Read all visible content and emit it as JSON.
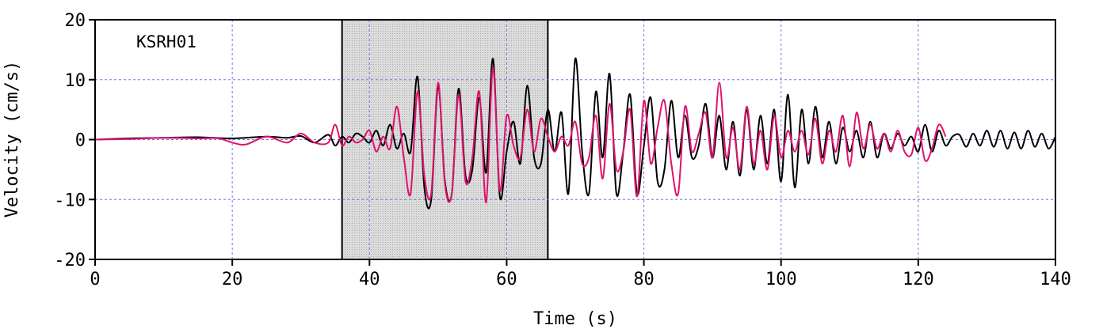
{
  "chart_data": {
    "type": "line",
    "station_label": "KSRH01",
    "xlabel": "Time (s)",
    "ylabel": "Velocity (cm/s)",
    "xlim": [
      0,
      140
    ],
    "ylim": [
      -20,
      20
    ],
    "xticks": [
      0,
      20,
      40,
      60,
      80,
      100,
      120,
      140
    ],
    "yticks": [
      20,
      10,
      0,
      -10,
      -20
    ],
    "grid": true,
    "highlight_window": {
      "x0": 36,
      "x1": 66
    },
    "colors": {
      "series_black": "#000000",
      "series_magenta": "#e0116e",
      "grid": "#7777dd",
      "window_fill": "#dcdcdc"
    },
    "series": [
      {
        "color": "#000000",
        "x": [
          0,
          5,
          10,
          15,
          20,
          25,
          28,
          30,
          32,
          34,
          35,
          36,
          37,
          38,
          39,
          40,
          41,
          42,
          43,
          44,
          45,
          46,
          47,
          48,
          49,
          50,
          51,
          52,
          53,
          54,
          55,
          56,
          57,
          58,
          59,
          60,
          61,
          62,
          63,
          64,
          65,
          66,
          67,
          68,
          69,
          70,
          71,
          72,
          73,
          74,
          75,
          76,
          77,
          78,
          79,
          80,
          81,
          82,
          83,
          84,
          85,
          86,
          87,
          88,
          89,
          90,
          91,
          92,
          93,
          94,
          95,
          96,
          97,
          98,
          99,
          100,
          101,
          102,
          103,
          104,
          105,
          106,
          107,
          108,
          109,
          110,
          111,
          112,
          113,
          114,
          115,
          116,
          117,
          118,
          119,
          120,
          121,
          122,
          123,
          124,
          125,
          126,
          127,
          128,
          129,
          130,
          131,
          132,
          133,
          134,
          135,
          136,
          137,
          138,
          139,
          140
        ],
        "y": [
          0,
          0.2,
          0.3,
          0.4,
          0.2,
          0.5,
          0.3,
          0.6,
          -0.5,
          0.8,
          -1.0,
          0.5,
          -0.5,
          1.0,
          0.5,
          -0.5,
          1.5,
          -1.0,
          2.5,
          -1.5,
          1.0,
          -2.0,
          10.5,
          -8.0,
          -10.0,
          9.0,
          -7.0,
          -9.0,
          8.5,
          -6.0,
          -5.0,
          7.0,
          -5.5,
          13.5,
          -9.5,
          -2.0,
          3.0,
          -4.0,
          9.0,
          -3.0,
          -4.0,
          5.0,
          -2.0,
          4.5,
          -9.0,
          13.5,
          -2.0,
          -9.0,
          8.0,
          -3.0,
          11.0,
          -9.0,
          -2.0,
          7.5,
          -9.0,
          -1.0,
          7.0,
          -7.0,
          -5.0,
          6.5,
          -3.0,
          4.0,
          -3.0,
          -1.0,
          6.0,
          -3.0,
          4.0,
          -5.0,
          3.0,
          -6.0,
          5.0,
          -5.0,
          4.0,
          -4.0,
          5.0,
          -7.0,
          7.5,
          -8.0,
          5.0,
          -4.0,
          5.5,
          -3.0,
          3.0,
          -4.0,
          2.0,
          -2.0,
          1.5,
          -3.0,
          3.0,
          -3.0,
          1.0,
          -1.5,
          1.0,
          -1.0,
          0.5,
          -2.0,
          2.5,
          -2.0,
          1.5,
          -1.0,
          0.5,
          0.8,
          -1.2,
          1.0,
          -1.0,
          1.5,
          -1.2,
          1.5,
          -1.5,
          1.2,
          -1.5,
          1.5,
          -1.2,
          1.0,
          -1.5,
          0.5
        ],
        "line_width": 2
      },
      {
        "color": "#e0116e",
        "x": [
          0,
          5,
          10,
          15,
          18,
          20,
          22,
          25,
          28,
          30,
          32,
          34,
          35,
          36,
          37,
          38,
          39,
          40,
          41,
          42,
          43,
          44,
          45,
          46,
          47,
          48,
          49,
          50,
          51,
          52,
          53,
          54,
          55,
          56,
          57,
          58,
          59,
          60,
          61,
          62,
          63,
          64,
          65,
          66,
          67,
          68,
          69,
          70,
          71,
          72,
          73,
          74,
          75,
          76,
          77,
          78,
          79,
          80,
          81,
          82,
          83,
          84,
          85,
          86,
          87,
          88,
          89,
          90,
          91,
          92,
          93,
          94,
          95,
          96,
          97,
          98,
          99,
          100,
          101,
          102,
          103,
          104,
          105,
          106,
          107,
          108,
          109,
          110,
          111,
          112,
          113,
          114,
          115,
          116,
          117,
          118,
          119,
          120,
          121,
          122,
          123,
          124
        ],
        "y": [
          0,
          0.1,
          0.3,
          0.2,
          0.2,
          -0.5,
          -0.8,
          0.5,
          -0.5,
          1.0,
          -0.5,
          -0.5,
          2.5,
          -1.0,
          0.5,
          -0.5,
          0.0,
          1.5,
          -2.0,
          0.5,
          -1.5,
          5.5,
          -3.0,
          -9.0,
          8.0,
          -6.0,
          -9.0,
          9.5,
          -7.5,
          -9.0,
          7.5,
          -7.0,
          -3.0,
          8.0,
          -10.5,
          12.0,
          -8.5,
          4.0,
          -1.0,
          -3.0,
          5.0,
          -2.0,
          3.5,
          0.5,
          -2.0,
          0.5,
          -1.0,
          3.0,
          -4.0,
          -3.0,
          4.0,
          -6.5,
          6.0,
          -5.0,
          -2.0,
          5.0,
          -9.5,
          6.5,
          -4.0,
          2.0,
          6.5,
          -4.0,
          -9.0,
          5.5,
          -2.0,
          1.0,
          4.5,
          -3.0,
          9.5,
          -3.0,
          2.0,
          -5.0,
          5.5,
          -4.0,
          1.5,
          -5.0,
          4.0,
          -3.0,
          1.5,
          -2.0,
          1.5,
          -2.5,
          3.5,
          -4.0,
          1.5,
          -2.0,
          4.0,
          -4.5,
          4.5,
          -1.5,
          2.5,
          -1.5,
          1.0,
          -2.0,
          1.5,
          -2.0,
          -2.5,
          2.0,
          -3.5,
          -1.5,
          2.5,
          0.5
        ],
        "line_width": 2
      }
    ]
  }
}
